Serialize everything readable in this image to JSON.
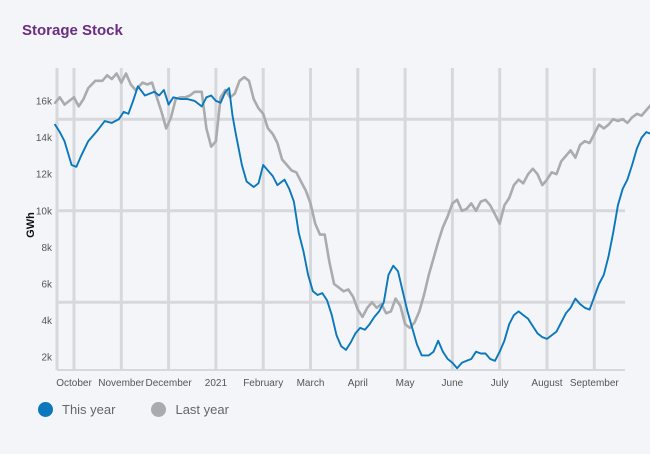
{
  "chart_data": {
    "type": "line",
    "title": "Storage Stock",
    "xlabel": "",
    "ylabel": "GWh",
    "x_tick_labels": [
      "October",
      "November",
      "December",
      "2021",
      "February",
      "March",
      "April",
      "May",
      "June",
      "July",
      "August",
      "September"
    ],
    "y_ticks": [
      {
        "value": 2000,
        "label": "2k"
      },
      {
        "value": 4000,
        "label": "4k"
      },
      {
        "value": 6000,
        "label": "6k"
      },
      {
        "value": 8000,
        "label": "8k"
      },
      {
        "value": 10000,
        "label": "10k"
      },
      {
        "value": 12000,
        "label": "12k"
      },
      {
        "value": 14000,
        "label": "14k"
      },
      {
        "value": 16000,
        "label": "16k"
      }
    ],
    "ylim": [
      1300,
      17800
    ],
    "x_range_months": [
      -0.4,
      11.6
    ],
    "grid": true,
    "legend_position": "bottom-left",
    "series": [
      {
        "name": "This year",
        "color": "#0b78bd",
        "points": [
          [
            -0.4,
            14700
          ],
          [
            -0.3,
            14300
          ],
          [
            -0.2,
            13800
          ],
          [
            -0.05,
            12500
          ],
          [
            0.05,
            12400
          ],
          [
            0.15,
            13000
          ],
          [
            0.3,
            13800
          ],
          [
            0.5,
            14400
          ],
          [
            0.65,
            14900
          ],
          [
            0.8,
            14800
          ],
          [
            0.95,
            15000
          ],
          [
            1.05,
            15400
          ],
          [
            1.15,
            15300
          ],
          [
            1.25,
            16000
          ],
          [
            1.35,
            16800
          ],
          [
            1.5,
            16300
          ],
          [
            1.6,
            16400
          ],
          [
            1.7,
            16500
          ],
          [
            1.8,
            16300
          ],
          [
            1.9,
            16600
          ],
          [
            2.0,
            15800
          ],
          [
            2.1,
            16200
          ],
          [
            2.25,
            16100
          ],
          [
            2.4,
            16100
          ],
          [
            2.55,
            16000
          ],
          [
            2.7,
            15700
          ],
          [
            2.8,
            16200
          ],
          [
            2.9,
            16300
          ],
          [
            3.0,
            16000
          ],
          [
            3.1,
            15900
          ],
          [
            3.2,
            16500
          ],
          [
            3.28,
            16700
          ],
          [
            3.35,
            15200
          ],
          [
            3.42,
            14200
          ],
          [
            3.55,
            12500
          ],
          [
            3.65,
            11600
          ],
          [
            3.8,
            11300
          ],
          [
            3.9,
            11500
          ],
          [
            4.0,
            12500
          ],
          [
            4.1,
            12200
          ],
          [
            4.2,
            11900
          ],
          [
            4.3,
            11400
          ],
          [
            4.45,
            11700
          ],
          [
            4.55,
            11200
          ],
          [
            4.65,
            10500
          ],
          [
            4.75,
            8800
          ],
          [
            4.85,
            7800
          ],
          [
            4.95,
            6500
          ],
          [
            5.05,
            5600
          ],
          [
            5.15,
            5400
          ],
          [
            5.25,
            5500
          ],
          [
            5.35,
            5100
          ],
          [
            5.45,
            4300
          ],
          [
            5.55,
            3200
          ],
          [
            5.65,
            2600
          ],
          [
            5.75,
            2400
          ],
          [
            5.85,
            2800
          ],
          [
            5.95,
            3300
          ],
          [
            6.05,
            3600
          ],
          [
            6.15,
            3500
          ],
          [
            6.25,
            3800
          ],
          [
            6.35,
            4200
          ],
          [
            6.45,
            4500
          ],
          [
            6.55,
            5000
          ],
          [
            6.65,
            6500
          ],
          [
            6.75,
            7000
          ],
          [
            6.85,
            6700
          ],
          [
            6.95,
            5600
          ],
          [
            7.05,
            4500
          ],
          [
            7.15,
            3600
          ],
          [
            7.25,
            2700
          ],
          [
            7.35,
            2100
          ],
          [
            7.5,
            2100
          ],
          [
            7.6,
            2300
          ],
          [
            7.7,
            2900
          ],
          [
            7.8,
            2300
          ],
          [
            7.9,
            1900
          ],
          [
            8.0,
            1700
          ],
          [
            8.1,
            1400
          ],
          [
            8.2,
            1700
          ],
          [
            8.3,
            1800
          ],
          [
            8.4,
            1900
          ],
          [
            8.5,
            2300
          ],
          [
            8.6,
            2200
          ],
          [
            8.7,
            2200
          ],
          [
            8.8,
            1900
          ],
          [
            8.9,
            1800
          ],
          [
            9.0,
            2300
          ],
          [
            9.1,
            2900
          ],
          [
            9.2,
            3800
          ],
          [
            9.3,
            4300
          ],
          [
            9.4,
            4500
          ],
          [
            9.5,
            4300
          ],
          [
            9.6,
            4100
          ],
          [
            9.7,
            3700
          ],
          [
            9.8,
            3300
          ],
          [
            9.9,
            3100
          ],
          [
            10.0,
            3000
          ],
          [
            10.1,
            3200
          ],
          [
            10.2,
            3400
          ],
          [
            10.3,
            3900
          ],
          [
            10.4,
            4400
          ],
          [
            10.5,
            4700
          ],
          [
            10.6,
            5200
          ],
          [
            10.7,
            4900
          ],
          [
            10.8,
            4700
          ],
          [
            10.9,
            4600
          ],
          [
            11.0,
            5300
          ],
          [
            11.1,
            6000
          ],
          [
            11.2,
            6500
          ],
          [
            11.3,
            7500
          ],
          [
            11.4,
            8800
          ],
          [
            11.5,
            10300
          ],
          [
            11.6,
            11200
          ],
          [
            11.7,
            11700
          ],
          [
            11.8,
            12500
          ],
          [
            11.9,
            13400
          ],
          [
            12.0,
            14000
          ],
          [
            12.1,
            14300
          ],
          [
            12.2,
            14200
          ],
          [
            12.3,
            14500
          ],
          [
            12.4,
            14700
          ],
          [
            12.5,
            14400
          ],
          [
            12.6,
            14800
          ],
          [
            12.7,
            14500
          ],
          [
            12.8,
            15000
          ]
        ]
      },
      {
        "name": "Last year",
        "color": "#aaabad",
        "points": [
          [
            -0.4,
            15900
          ],
          [
            -0.3,
            16200
          ],
          [
            -0.2,
            15800
          ],
          [
            -0.1,
            16000
          ],
          [
            0.0,
            16200
          ],
          [
            0.1,
            15700
          ],
          [
            0.2,
            16100
          ],
          [
            0.3,
            16700
          ],
          [
            0.45,
            17100
          ],
          [
            0.6,
            17100
          ],
          [
            0.7,
            17400
          ],
          [
            0.8,
            17200
          ],
          [
            0.9,
            17500
          ],
          [
            1.0,
            17000
          ],
          [
            1.1,
            17500
          ],
          [
            1.2,
            16900
          ],
          [
            1.3,
            16600
          ],
          [
            1.45,
            17000
          ],
          [
            1.55,
            16900
          ],
          [
            1.65,
            17000
          ],
          [
            1.75,
            16200
          ],
          [
            1.85,
            15400
          ],
          [
            1.95,
            14500
          ],
          [
            2.05,
            15100
          ],
          [
            2.15,
            16100
          ],
          [
            2.25,
            16200
          ],
          [
            2.35,
            16200
          ],
          [
            2.45,
            16300
          ],
          [
            2.55,
            16500
          ],
          [
            2.7,
            16500
          ],
          [
            2.8,
            14500
          ],
          [
            2.9,
            13500
          ],
          [
            3.0,
            13800
          ],
          [
            3.1,
            16200
          ],
          [
            3.2,
            16600
          ],
          [
            3.3,
            16200
          ],
          [
            3.4,
            16400
          ],
          [
            3.5,
            17100
          ],
          [
            3.6,
            17300
          ],
          [
            3.7,
            17100
          ],
          [
            3.8,
            16100
          ],
          [
            3.9,
            15600
          ],
          [
            4.0,
            15300
          ],
          [
            4.1,
            14500
          ],
          [
            4.2,
            14200
          ],
          [
            4.3,
            13700
          ],
          [
            4.4,
            12800
          ],
          [
            4.5,
            12500
          ],
          [
            4.6,
            12200
          ],
          [
            4.7,
            12100
          ],
          [
            4.8,
            11600
          ],
          [
            4.9,
            11100
          ],
          [
            5.0,
            10400
          ],
          [
            5.1,
            9300
          ],
          [
            5.2,
            8700
          ],
          [
            5.3,
            8700
          ],
          [
            5.4,
            7200
          ],
          [
            5.5,
            6000
          ],
          [
            5.6,
            5800
          ],
          [
            5.7,
            5600
          ],
          [
            5.8,
            5700
          ],
          [
            5.9,
            5300
          ],
          [
            6.0,
            4600
          ],
          [
            6.1,
            4200
          ],
          [
            6.2,
            4700
          ],
          [
            6.3,
            5000
          ],
          [
            6.4,
            4700
          ],
          [
            6.5,
            4900
          ],
          [
            6.6,
            4400
          ],
          [
            6.7,
            4500
          ],
          [
            6.8,
            5200
          ],
          [
            6.9,
            4800
          ],
          [
            7.0,
            3800
          ],
          [
            7.1,
            3600
          ],
          [
            7.2,
            3900
          ],
          [
            7.3,
            4500
          ],
          [
            7.4,
            5400
          ],
          [
            7.5,
            6500
          ],
          [
            7.6,
            7400
          ],
          [
            7.7,
            8300
          ],
          [
            7.8,
            9100
          ],
          [
            7.9,
            9700
          ],
          [
            8.0,
            10400
          ],
          [
            8.1,
            10600
          ],
          [
            8.2,
            10000
          ],
          [
            8.3,
            10100
          ],
          [
            8.4,
            10400
          ],
          [
            8.5,
            10000
          ],
          [
            8.6,
            10500
          ],
          [
            8.7,
            10600
          ],
          [
            8.8,
            10300
          ],
          [
            8.9,
            9800
          ],
          [
            9.0,
            9300
          ],
          [
            9.1,
            10300
          ],
          [
            9.2,
            10700
          ],
          [
            9.3,
            11400
          ],
          [
            9.4,
            11700
          ],
          [
            9.5,
            11500
          ],
          [
            9.6,
            12000
          ],
          [
            9.7,
            12300
          ],
          [
            9.8,
            12000
          ],
          [
            9.9,
            11400
          ],
          [
            10.0,
            11700
          ],
          [
            10.1,
            12100
          ],
          [
            10.2,
            12000
          ],
          [
            10.3,
            12700
          ],
          [
            10.4,
            13000
          ],
          [
            10.5,
            13300
          ],
          [
            10.6,
            12900
          ],
          [
            10.7,
            13600
          ],
          [
            10.8,
            13800
          ],
          [
            10.9,
            13700
          ],
          [
            11.0,
            14200
          ],
          [
            11.1,
            14700
          ],
          [
            11.2,
            14500
          ],
          [
            11.3,
            14700
          ],
          [
            11.4,
            15000
          ],
          [
            11.5,
            14900
          ],
          [
            11.6,
            15000
          ],
          [
            11.7,
            14800
          ],
          [
            11.8,
            15100
          ],
          [
            11.9,
            15300
          ],
          [
            12.0,
            15200
          ],
          [
            12.1,
            15500
          ],
          [
            12.2,
            15800
          ],
          [
            12.3,
            15300
          ],
          [
            12.4,
            15400
          ],
          [
            12.5,
            15600
          ],
          [
            12.6,
            14700
          ],
          [
            12.7,
            14800
          ],
          [
            12.8,
            14300
          ]
        ]
      }
    ]
  }
}
